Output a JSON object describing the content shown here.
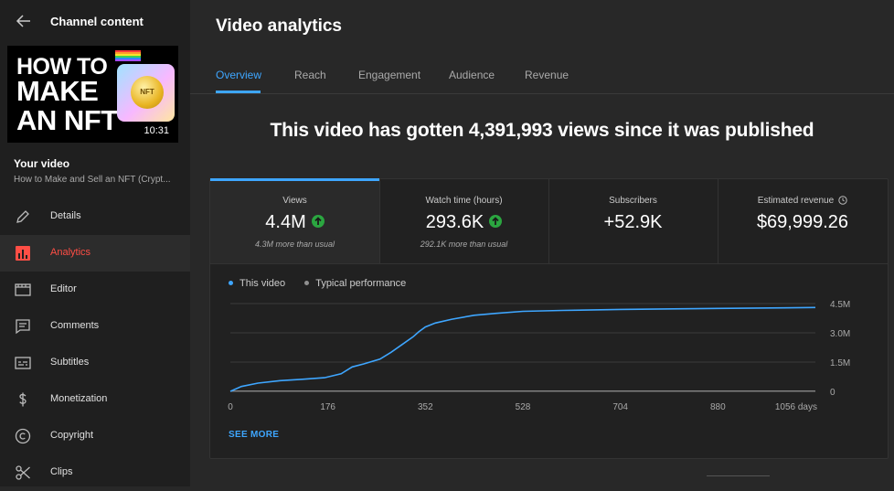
{
  "sidebar": {
    "title": "Channel content",
    "thumbnail": {
      "line1": "HOW TO",
      "line2": "MAKE",
      "line3": "AN NFT",
      "coin_text": "NFT",
      "duration": "10:31"
    },
    "your_video_label": "Your video",
    "video_title": "How to Make and Sell an NFT (Crypt...",
    "items": [
      {
        "label": "Details",
        "icon": "pencil-icon"
      },
      {
        "label": "Analytics",
        "icon": "analytics-icon"
      },
      {
        "label": "Editor",
        "icon": "editor-icon"
      },
      {
        "label": "Comments",
        "icon": "comments-icon"
      },
      {
        "label": "Subtitles",
        "icon": "subtitles-icon"
      },
      {
        "label": "Monetization",
        "icon": "dollar-icon"
      },
      {
        "label": "Copyright",
        "icon": "copyright-icon"
      },
      {
        "label": "Clips",
        "icon": "scissors-icon"
      }
    ],
    "active_item": "Analytics"
  },
  "main": {
    "page_title": "Video analytics",
    "tabs": [
      "Overview",
      "Reach",
      "Engagement",
      "Audience",
      "Revenue"
    ],
    "active_tab": "Overview",
    "headline": "This video has gotten 4,391,993 views since it was published"
  },
  "stats": [
    {
      "label": "Views",
      "value": "4.4M",
      "sub": "4.3M more than usual",
      "trend": "up"
    },
    {
      "label": "Watch time (hours)",
      "value": "293.6K",
      "sub": "292.1K more than usual",
      "trend": "up"
    },
    {
      "label": "Subscribers",
      "value": "+52.9K",
      "sub": "",
      "trend": ""
    },
    {
      "label": "Estimated revenue",
      "value": "$69,999.26",
      "sub": "",
      "trend": ""
    }
  ],
  "legend": {
    "this_video": "This video",
    "typical": "Typical performance"
  },
  "see_more": "SEE MORE",
  "colors": {
    "accent": "#3ea6ff",
    "active_nav": "#ff4e45",
    "trend_up": "#2ba640",
    "series_this_video": "#3ea6ff",
    "series_typical": "#909090"
  },
  "chart_data": {
    "type": "line",
    "xlabel": "",
    "ylabel": "",
    "x_ticks": [
      "0",
      "176",
      "352",
      "528",
      "704",
      "880",
      "1056 days"
    ],
    "y_ticks": [
      "0",
      "1.5M",
      "3.0M",
      "4.5M"
    ],
    "xlim": [
      0,
      1056
    ],
    "ylim": [
      0,
      4500000
    ],
    "grid": true,
    "legend_position": "top-left",
    "series": [
      {
        "name": "This video",
        "x": [
          0,
          20,
          50,
          90,
          130,
          170,
          200,
          220,
          240,
          270,
          290,
          310,
          330,
          340,
          352,
          370,
          400,
          440,
          480,
          528,
          600,
          704,
          800,
          880,
          1000,
          1056
        ],
        "y": [
          0,
          250000,
          420000,
          550000,
          620000,
          700000,
          900000,
          1250000,
          1400000,
          1650000,
          2000000,
          2400000,
          2800000,
          3050000,
          3300000,
          3500000,
          3700000,
          3900000,
          4000000,
          4100000,
          4150000,
          4200000,
          4230000,
          4250000,
          4280000,
          4300000
        ]
      },
      {
        "name": "Typical performance",
        "x": [
          0,
          1056
        ],
        "y": [
          15000,
          15000
        ]
      }
    ]
  }
}
